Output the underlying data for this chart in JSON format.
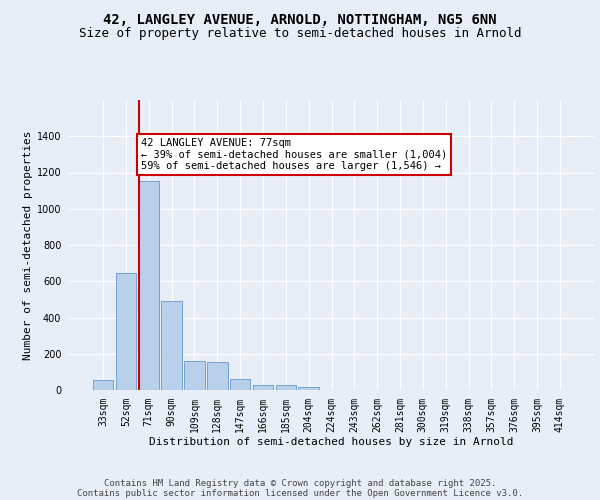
{
  "title_line1": "42, LANGLEY AVENUE, ARNOLD, NOTTINGHAM, NG5 6NN",
  "title_line2": "Size of property relative to semi-detached houses in Arnold",
  "xlabel": "Distribution of semi-detached houses by size in Arnold",
  "ylabel": "Number of semi-detached properties",
  "categories": [
    "33sqm",
    "52sqm",
    "71sqm",
    "90sqm",
    "109sqm",
    "128sqm",
    "147sqm",
    "166sqm",
    "185sqm",
    "204sqm",
    "224sqm",
    "243sqm",
    "262sqm",
    "281sqm",
    "300sqm",
    "319sqm",
    "338sqm",
    "357sqm",
    "376sqm",
    "395sqm",
    "414sqm"
  ],
  "values": [
    55,
    645,
    1155,
    490,
    160,
    155,
    60,
    30,
    25,
    18,
    0,
    0,
    0,
    0,
    0,
    0,
    0,
    0,
    0,
    0,
    0
  ],
  "bar_color": "#b8d0ea",
  "bar_edge_color": "#6699cc",
  "property_line_bin": 2,
  "annotation_text": "42 LANGLEY AVENUE: 77sqm\n← 39% of semi-detached houses are smaller (1,004)\n59% of semi-detached houses are larger (1,546) →",
  "ylim": [
    0,
    1600
  ],
  "yticks": [
    0,
    200,
    400,
    600,
    800,
    1000,
    1200,
    1400
  ],
  "background_color": "#e8eef8",
  "plot_bg_color": "#e8eef8",
  "grid_color": "#ffffff",
  "footer_line1": "Contains HM Land Registry data © Crown copyright and database right 2025.",
  "footer_line2": "Contains public sector information licensed under the Open Government Licence v3.0.",
  "annotation_box_facecolor": "#ffffff",
  "annotation_box_edgecolor": "#cc0000",
  "property_line_color": "#cc0000",
  "title_fontsize": 10,
  "subtitle_fontsize": 9,
  "tick_fontsize": 7,
  "ylabel_fontsize": 8,
  "xlabel_fontsize": 8,
  "annotation_fontsize": 7.5,
  "footer_fontsize": 6.5
}
